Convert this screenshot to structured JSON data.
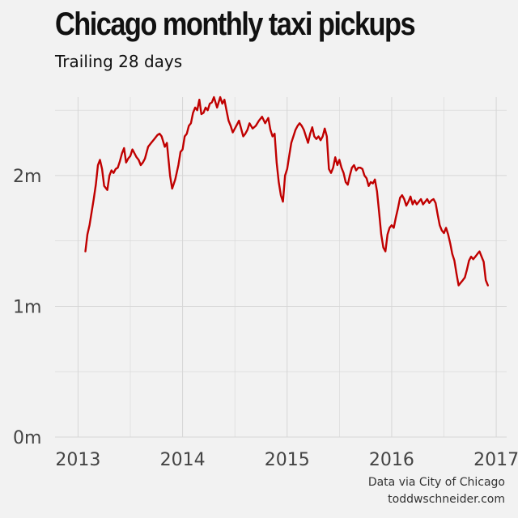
{
  "header": {
    "title": "Chicago monthly taxi pickups",
    "subtitle": "Trailing 28 days"
  },
  "caption": {
    "line1": "Data via City of Chicago",
    "line2": "toddwschneider.com"
  },
  "colors": {
    "background": "#f2f2f2",
    "grid": "#d6d6d6",
    "line": "#c00000",
    "text": "#333333"
  },
  "chart_data": {
    "type": "line",
    "title": "Chicago monthly taxi pickups",
    "subtitle": "Trailing 28 days",
    "xlabel": "",
    "ylabel": "",
    "xlim": [
      2012.78,
      2017.1
    ],
    "ylim": [
      0,
      2.6
    ],
    "x_ticks": [
      2013,
      2014,
      2015,
      2016,
      2017
    ],
    "x_tick_labels": [
      "2013",
      "2014",
      "2015",
      "2016",
      "2017"
    ],
    "y_ticks": [
      0,
      1,
      2
    ],
    "y_tick_labels": [
      "0m",
      "1m",
      "2m"
    ],
    "y_unit": "millions",
    "grid": true,
    "legend": "none",
    "series": [
      {
        "x": [
          2013.07,
          2013.09,
          2013.11,
          2013.13,
          2013.15,
          2013.17,
          2013.19,
          2013.21,
          2013.23,
          2013.25,
          2013.28,
          2013.3,
          2013.32,
          2013.34,
          2013.36,
          2013.38,
          2013.4,
          2013.42,
          2013.44,
          2013.46,
          2013.48,
          2013.5,
          2013.52,
          2013.54,
          2013.56,
          2013.58,
          2013.6,
          2013.62,
          2013.64,
          2013.67,
          2013.7,
          2013.73,
          2013.76,
          2013.78,
          2013.8,
          2013.83,
          2013.85,
          2013.88,
          2013.9,
          2013.93,
          2013.96,
          2013.98,
          2014.0,
          2014.02,
          2014.04,
          2014.06,
          2014.08,
          2014.1,
          2014.12,
          2014.14,
          2014.16,
          2014.18,
          2014.2,
          2014.22,
          2014.24,
          2014.26,
          2014.28,
          2014.3,
          2014.33,
          2014.36,
          2014.38,
          2014.4,
          2014.42,
          2014.44,
          2014.46,
          2014.48,
          2014.5,
          2014.52,
          2014.54,
          2014.56,
          2014.58,
          2014.6,
          2014.62,
          2014.64,
          2014.67,
          2014.7,
          2014.73,
          2014.76,
          2014.79,
          2014.82,
          2014.84,
          2014.86,
          2014.88,
          2014.9,
          2014.92,
          2014.94,
          2014.96,
          2014.98,
          2015.0,
          2015.02,
          2015.04,
          2015.06,
          2015.08,
          2015.1,
          2015.12,
          2015.14,
          2015.16,
          2015.18,
          2015.2,
          2015.22,
          2015.24,
          2015.26,
          2015.28,
          2015.3,
          2015.32,
          2015.34,
          2015.36,
          2015.38,
          2015.4,
          2015.42,
          2015.44,
          2015.46,
          2015.48,
          2015.5,
          2015.52,
          2015.54,
          2015.56,
          2015.58,
          2015.6,
          2015.62,
          2015.64,
          2015.66,
          2015.68,
          2015.7,
          2015.72,
          2015.74,
          2015.76,
          2015.78,
          2015.8,
          2015.82,
          2015.84,
          2015.86,
          2015.88,
          2015.9,
          2015.92,
          2015.94,
          2015.96,
          2015.98,
          2016.0,
          2016.02,
          2016.04,
          2016.06,
          2016.08,
          2016.1,
          2016.12,
          2016.14,
          2016.16,
          2016.18,
          2016.2,
          2016.22,
          2016.24,
          2016.26,
          2016.28,
          2016.3,
          2016.32,
          2016.34,
          2016.36,
          2016.38,
          2016.4,
          2016.42,
          2016.44,
          2016.46,
          2016.48,
          2016.5,
          2016.52,
          2016.54,
          2016.56,
          2016.58,
          2016.6,
          2016.62,
          2016.64,
          2016.66,
          2016.68,
          2016.7,
          2016.72,
          2016.74,
          2016.76,
          2016.78,
          2016.8,
          2016.82,
          2016.84,
          2016.86,
          2016.88,
          2016.9,
          2016.92
        ],
        "values": [
          1.42,
          1.55,
          1.62,
          1.72,
          1.82,
          1.93,
          2.08,
          2.12,
          2.05,
          1.92,
          1.89,
          2.0,
          2.04,
          2.02,
          2.05,
          2.06,
          2.11,
          2.17,
          2.21,
          2.1,
          2.13,
          2.15,
          2.2,
          2.17,
          2.14,
          2.12,
          2.08,
          2.1,
          2.13,
          2.22,
          2.25,
          2.28,
          2.31,
          2.32,
          2.3,
          2.22,
          2.25,
          2.0,
          1.9,
          1.97,
          2.08,
          2.18,
          2.2,
          2.3,
          2.32,
          2.38,
          2.4,
          2.48,
          2.52,
          2.5,
          2.58,
          2.47,
          2.48,
          2.52,
          2.5,
          2.55,
          2.56,
          2.6,
          2.52,
          2.6,
          2.55,
          2.58,
          2.5,
          2.42,
          2.38,
          2.33,
          2.36,
          2.39,
          2.42,
          2.36,
          2.3,
          2.32,
          2.35,
          2.4,
          2.36,
          2.38,
          2.42,
          2.45,
          2.4,
          2.44,
          2.35,
          2.3,
          2.32,
          2.1,
          1.95,
          1.85,
          1.8,
          2.0,
          2.05,
          2.15,
          2.25,
          2.3,
          2.35,
          2.38,
          2.4,
          2.38,
          2.35,
          2.3,
          2.25,
          2.32,
          2.37,
          2.3,
          2.28,
          2.3,
          2.27,
          2.3,
          2.36,
          2.3,
          2.05,
          2.02,
          2.06,
          2.14,
          2.08,
          2.12,
          2.06,
          2.02,
          1.95,
          1.93,
          2.0,
          2.06,
          2.08,
          2.04,
          2.06,
          2.06,
          2.05,
          2.0,
          1.98,
          1.92,
          1.95,
          1.94,
          1.97,
          1.88,
          1.72,
          1.55,
          1.45,
          1.42,
          1.55,
          1.6,
          1.62,
          1.6,
          1.68,
          1.75,
          1.83,
          1.85,
          1.82,
          1.77,
          1.8,
          1.84,
          1.78,
          1.81,
          1.78,
          1.8,
          1.82,
          1.78,
          1.8,
          1.82,
          1.79,
          1.81,
          1.82,
          1.79,
          1.7,
          1.62,
          1.58,
          1.56,
          1.6,
          1.55,
          1.48,
          1.4,
          1.35,
          1.25,
          1.16,
          1.18,
          1.2,
          1.22,
          1.28,
          1.35,
          1.38,
          1.36,
          1.38,
          1.4,
          1.42,
          1.38,
          1.34,
          1.2,
          1.16
        ]
      }
    ]
  }
}
